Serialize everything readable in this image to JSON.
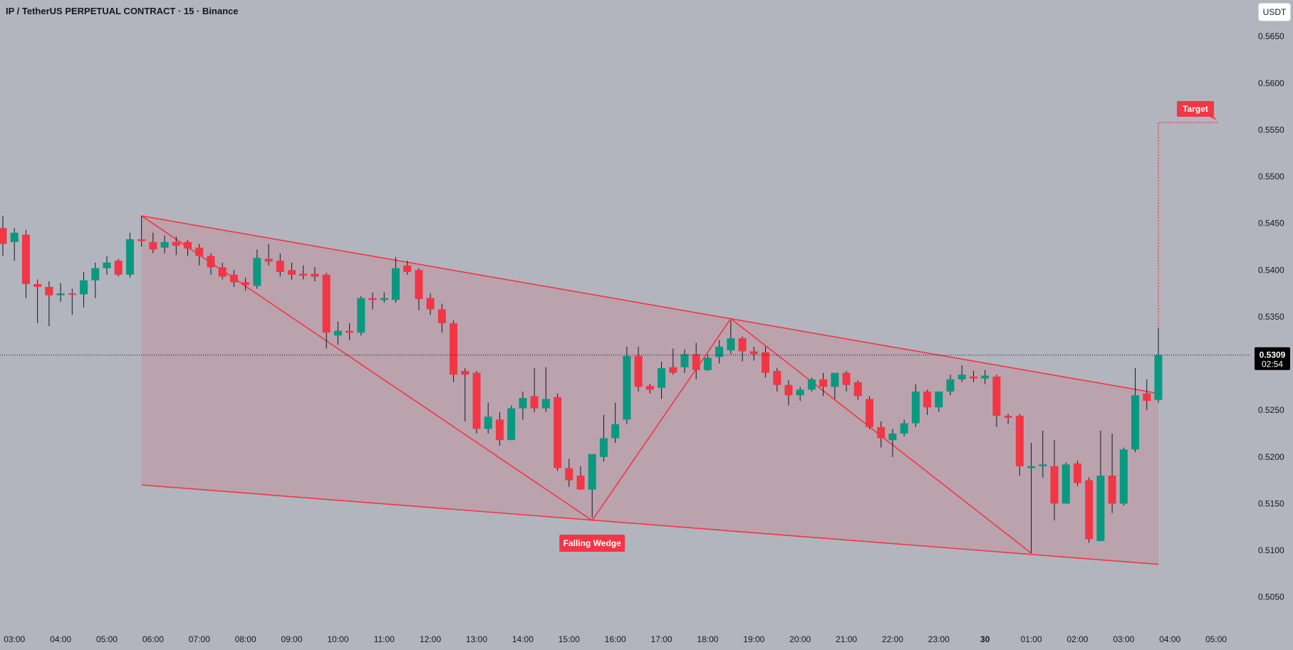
{
  "header": {
    "title": "IP / TetherUS PERPETUAL CONTRACT · 15 · Binance",
    "currency_button": "USDT"
  },
  "colors": {
    "background": "#b2b5be",
    "up": "#089981",
    "down": "#f23645",
    "pattern_line": "#f23645",
    "pattern_fill": "rgba(242,54,69,0.14)",
    "label_bg": "#f23645",
    "label_text": "#ffffff",
    "axis_text": "#131722",
    "price_tag_bg": "#000000"
  },
  "chart_data": {
    "type": "candlestick",
    "symbol": "IP / TetherUS PERPETUAL CONTRACT",
    "interval": "15",
    "exchange": "Binance",
    "y_axis": {
      "range": [
        0.502,
        0.5686
      ],
      "ticks": [
        "0.5650",
        "0.5600",
        "0.5550",
        "0.5500",
        "0.5450",
        "0.5400",
        "0.5350",
        "0.5300",
        "0.5250",
        "0.5200",
        "0.5150",
        "0.5100",
        "0.5050"
      ]
    },
    "x_axis": {
      "first_candle_time": "02:45",
      "interval_minutes": 15,
      "ticks": [
        {
          "label": "03:00",
          "idx": 1
        },
        {
          "label": "04:00",
          "idx": 5
        },
        {
          "label": "05:00",
          "idx": 9
        },
        {
          "label": "06:00",
          "idx": 13
        },
        {
          "label": "07:00",
          "idx": 17
        },
        {
          "label": "08:00",
          "idx": 21
        },
        {
          "label": "09:00",
          "idx": 25
        },
        {
          "label": "10:00",
          "idx": 29
        },
        {
          "label": "11:00",
          "idx": 33
        },
        {
          "label": "12:00",
          "idx": 37
        },
        {
          "label": "13:00",
          "idx": 41
        },
        {
          "label": "14:00",
          "idx": 45
        },
        {
          "label": "15:00",
          "idx": 49
        },
        {
          "label": "16:00",
          "idx": 53
        },
        {
          "label": "17:00",
          "idx": 57
        },
        {
          "label": "18:00",
          "idx": 61
        },
        {
          "label": "19:00",
          "idx": 65
        },
        {
          "label": "20:00",
          "idx": 69
        },
        {
          "label": "21:00",
          "idx": 73
        },
        {
          "label": "22:00",
          "idx": 77
        },
        {
          "label": "23:00",
          "idx": 81
        },
        {
          "label": "30",
          "idx": 85,
          "bold": true
        },
        {
          "label": "01:00",
          "idx": 89
        },
        {
          "label": "02:00",
          "idx": 93
        },
        {
          "label": "03:00",
          "idx": 97
        },
        {
          "label": "04:00",
          "idx": 101
        },
        {
          "label": "05:00",
          "idx": 105
        }
      ]
    },
    "candles": [
      [
        0.5445,
        0.5458,
        0.5415,
        0.5428
      ],
      [
        0.543,
        0.5445,
        0.541,
        0.544
      ],
      [
        0.5438,
        0.5443,
        0.537,
        0.5385
      ],
      [
        0.5385,
        0.539,
        0.5343,
        0.5382
      ],
      [
        0.5382,
        0.5388,
        0.534,
        0.5373
      ],
      [
        0.5373,
        0.5386,
        0.5366,
        0.5375
      ],
      [
        0.5375,
        0.538,
        0.5352,
        0.5374
      ],
      [
        0.5374,
        0.5398,
        0.536,
        0.5389
      ],
      [
        0.5389,
        0.5408,
        0.537,
        0.5402
      ],
      [
        0.5402,
        0.5415,
        0.5395,
        0.5408
      ],
      [
        0.541,
        0.5412,
        0.5393,
        0.5395
      ],
      [
        0.5395,
        0.544,
        0.5392,
        0.5433
      ],
      [
        0.5433,
        0.5458,
        0.5425,
        0.5431
      ],
      [
        0.543,
        0.544,
        0.5418,
        0.5422
      ],
      [
        0.5424,
        0.5437,
        0.5418,
        0.543
      ],
      [
        0.543,
        0.5436,
        0.5416,
        0.5426
      ],
      [
        0.543,
        0.5432,
        0.5415,
        0.5423
      ],
      [
        0.5424,
        0.5428,
        0.5405,
        0.5415
      ],
      [
        0.5415,
        0.5418,
        0.5395,
        0.5403
      ],
      [
        0.5403,
        0.5408,
        0.539,
        0.5393
      ],
      [
        0.5395,
        0.54,
        0.5382,
        0.5387
      ],
      [
        0.5387,
        0.5392,
        0.5378,
        0.5384
      ],
      [
        0.5383,
        0.5422,
        0.538,
        0.5413
      ],
      [
        0.5412,
        0.5428,
        0.5405,
        0.5409
      ],
      [
        0.541,
        0.5418,
        0.5393,
        0.5398
      ],
      [
        0.54,
        0.5408,
        0.539,
        0.5395
      ],
      [
        0.5396,
        0.5405,
        0.539,
        0.5394
      ],
      [
        0.5396,
        0.5403,
        0.5388,
        0.5393
      ],
      [
        0.5395,
        0.5397,
        0.5316,
        0.5333
      ],
      [
        0.533,
        0.5345,
        0.532,
        0.5335
      ],
      [
        0.5335,
        0.5343,
        0.5325,
        0.5333
      ],
      [
        0.5333,
        0.5372,
        0.533,
        0.537
      ],
      [
        0.537,
        0.5376,
        0.5358,
        0.5368
      ],
      [
        0.5368,
        0.5376,
        0.5365,
        0.537
      ],
      [
        0.5368,
        0.5414,
        0.5365,
        0.5402
      ],
      [
        0.5405,
        0.541,
        0.5395,
        0.5398
      ],
      [
        0.54,
        0.5402,
        0.5357,
        0.5369
      ],
      [
        0.537,
        0.5375,
        0.5352,
        0.5358
      ],
      [
        0.5358,
        0.5364,
        0.5333,
        0.5343
      ],
      [
        0.5343,
        0.5346,
        0.528,
        0.5288
      ],
      [
        0.5292,
        0.5295,
        0.5238,
        0.5288
      ],
      [
        0.529,
        0.5292,
        0.5225,
        0.523
      ],
      [
        0.523,
        0.5258,
        0.5225,
        0.5243
      ],
      [
        0.524,
        0.5248,
        0.5212,
        0.5218
      ],
      [
        0.5218,
        0.5255,
        0.5218,
        0.5252
      ],
      [
        0.5252,
        0.527,
        0.524,
        0.5263
      ],
      [
        0.5265,
        0.5295,
        0.5248,
        0.5252
      ],
      [
        0.5252,
        0.5296,
        0.5248,
        0.5262
      ],
      [
        0.5264,
        0.5268,
        0.5185,
        0.5188
      ],
      [
        0.5188,
        0.5198,
        0.5168,
        0.5175
      ],
      [
        0.518,
        0.519,
        0.5165,
        0.5165
      ],
      [
        0.5165,
        0.5202,
        0.5135,
        0.5203
      ],
      [
        0.52,
        0.5245,
        0.5195,
        0.522
      ],
      [
        0.522,
        0.5258,
        0.5215,
        0.5235
      ],
      [
        0.524,
        0.5318,
        0.5235,
        0.5308
      ],
      [
        0.5308,
        0.5318,
        0.527,
        0.5275
      ],
      [
        0.5276,
        0.5278,
        0.5268,
        0.5272
      ],
      [
        0.5274,
        0.5302,
        0.5262,
        0.5295
      ],
      [
        0.5296,
        0.5316,
        0.5288,
        0.529
      ],
      [
        0.5296,
        0.5315,
        0.529,
        0.531
      ],
      [
        0.531,
        0.5322,
        0.5283,
        0.5293
      ],
      [
        0.5293,
        0.531,
        0.5292,
        0.5306
      ],
      [
        0.5307,
        0.5325,
        0.53,
        0.5318
      ],
      [
        0.5314,
        0.5346,
        0.531,
        0.5327
      ],
      [
        0.5327,
        0.5329,
        0.5302,
        0.5313
      ],
      [
        0.5313,
        0.5318,
        0.5303,
        0.531
      ],
      [
        0.5312,
        0.5318,
        0.5285,
        0.529
      ],
      [
        0.5292,
        0.5295,
        0.527,
        0.5277
      ],
      [
        0.5277,
        0.5282,
        0.5255,
        0.5266
      ],
      [
        0.5266,
        0.5275,
        0.526,
        0.5272
      ],
      [
        0.5272,
        0.5285,
        0.527,
        0.5283
      ],
      [
        0.5283,
        0.529,
        0.5265,
        0.5275
      ],
      [
        0.5275,
        0.529,
        0.5262,
        0.529
      ],
      [
        0.529,
        0.5292,
        0.527,
        0.5277
      ],
      [
        0.528,
        0.5282,
        0.5261,
        0.5265
      ],
      [
        0.5262,
        0.5265,
        0.523,
        0.5232
      ],
      [
        0.5232,
        0.5238,
        0.521,
        0.522
      ],
      [
        0.5218,
        0.523,
        0.52,
        0.5225
      ],
      [
        0.5225,
        0.524,
        0.5222,
        0.5236
      ],
      [
        0.5236,
        0.5278,
        0.5232,
        0.527
      ],
      [
        0.527,
        0.5272,
        0.5245,
        0.5253
      ],
      [
        0.5253,
        0.527,
        0.5248,
        0.527
      ],
      [
        0.527,
        0.5288,
        0.5266,
        0.5283
      ],
      [
        0.5283,
        0.5298,
        0.528,
        0.5288
      ],
      [
        0.5286,
        0.5292,
        0.528,
        0.5284
      ],
      [
        0.5284,
        0.5293,
        0.5278,
        0.5287
      ],
      [
        0.5286,
        0.5288,
        0.5232,
        0.5244
      ],
      [
        0.5244,
        0.5246,
        0.5235,
        0.5242
      ],
      [
        0.5244,
        0.5246,
        0.518,
        0.519
      ],
      [
        0.5188,
        0.5215,
        0.5097,
        0.519
      ],
      [
        0.519,
        0.5228,
        0.5178,
        0.5192
      ],
      [
        0.519,
        0.5218,
        0.5132,
        0.515
      ],
      [
        0.515,
        0.5194,
        0.515,
        0.5192
      ],
      [
        0.5193,
        0.5196,
        0.5169,
        0.5172
      ],
      [
        0.5175,
        0.5178,
        0.5108,
        0.5112
      ],
      [
        0.511,
        0.5228,
        0.511,
        0.518
      ],
      [
        0.518,
        0.5225,
        0.514,
        0.515
      ],
      [
        0.515,
        0.521,
        0.5148,
        0.5208
      ],
      [
        0.5208,
        0.5295,
        0.5205,
        0.5266
      ],
      [
        0.5268,
        0.5283,
        0.525,
        0.526
      ],
      [
        0.5261,
        0.5338,
        0.5258,
        0.5309
      ]
    ],
    "pattern": {
      "name": "Falling Wedge",
      "upper_line": [
        {
          "idx": 12,
          "price": 0.5458
        },
        {
          "idx": 100,
          "price": 0.5268
        }
      ],
      "lower_line": [
        {
          "idx": 12,
          "price": 0.517
        },
        {
          "idx": 100,
          "price": 0.5085
        }
      ],
      "zigzag": [
        {
          "idx": 12,
          "price": 0.5458
        },
        {
          "idx": 51,
          "price": 0.5132
        },
        {
          "idx": 63,
          "price": 0.5348
        },
        {
          "idx": 89,
          "price": 0.5097
        }
      ]
    },
    "target": {
      "label": "Target",
      "price": 0.5558,
      "from_idx": 100,
      "to_idx": 105
    },
    "annotation_label": "Falling Wedge",
    "current_price": {
      "label": "0.5309",
      "timer": "02:54"
    }
  }
}
